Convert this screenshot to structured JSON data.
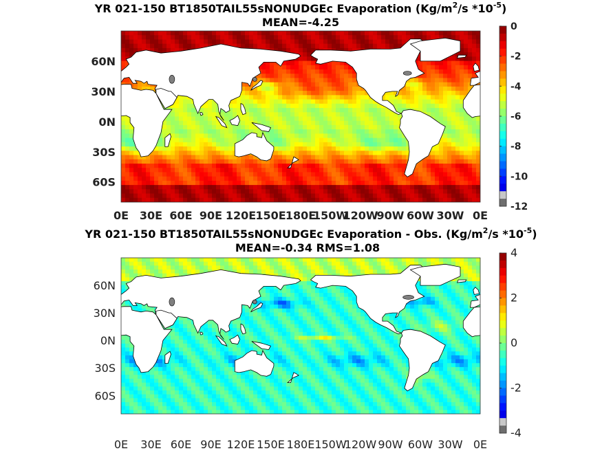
{
  "chart_data": [
    {
      "type": "heatmap",
      "title_main": "YR 021-150 BT1850TAIL55sNONUDGEc  Evaporation (Kg/m",
      "title_sup1": "2",
      "title_mid": "/s *10",
      "title_sup2": "-5",
      "title_end": ")",
      "subtitle": "MEAN=-4.25",
      "x_ticks": [
        "0E",
        "30E",
        "60E",
        "90E",
        "120E",
        "150E",
        "180E",
        "150W",
        "120W",
        "90W",
        "60W",
        "30W",
        "0E"
      ],
      "y_ticks": [
        "60N",
        "30N",
        "0N",
        "30S",
        "60S"
      ],
      "colorbar_ticks": [
        "0",
        "-2",
        "-4",
        "-6",
        "-8",
        "-10",
        "-12"
      ],
      "clim": [
        -12,
        0
      ],
      "mean": -4.25,
      "colormap": "jet"
    },
    {
      "type": "heatmap",
      "title_main": "YR 021-150 BT1850TAIL55sNONUDGEc Evaporation - Obs. (Kg/m",
      "title_sup1": "2",
      "title_mid": "/s *10",
      "title_sup2": "-5",
      "title_end": ")",
      "subtitle": "MEAN=-0.34   RMS=1.08",
      "x_ticks": [
        "0E",
        "30E",
        "60E",
        "90E",
        "120E",
        "150E",
        "180E",
        "150W",
        "120W",
        "90W",
        "60W",
        "30W",
        "0E"
      ],
      "y_ticks": [
        "60N",
        "30N",
        "0N",
        "30S",
        "60S"
      ],
      "colorbar_ticks": [
        "4",
        "2",
        "0",
        "-2",
        "-4"
      ],
      "clim": [
        -4,
        4
      ],
      "mean": -0.34,
      "rms": 1.08,
      "colormap": "jet"
    }
  ],
  "colors": {
    "land": "#ffffff",
    "coast": "#000000",
    "missing": "#808080"
  }
}
